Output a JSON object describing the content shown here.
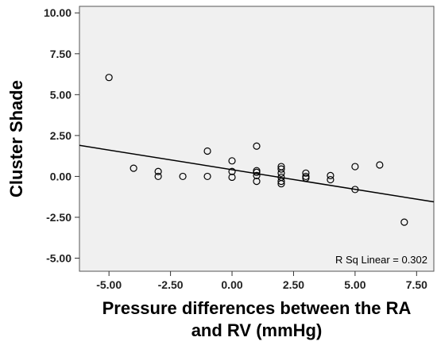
{
  "chart_data": {
    "type": "scatter",
    "title": "",
    "xlabel": "Pressure differences between the RA and RV (mmHg)",
    "xlabel_lines": [
      "Pressure differences between the RA",
      "and RV (mmHg)"
    ],
    "ylabel": "Cluster Shade",
    "xlim": [
      -6.2,
      8.2
    ],
    "ylim": [
      -5.8,
      10.4
    ],
    "x_ticks": [
      -5,
      -2.5,
      0,
      2.5,
      5,
      7.5
    ],
    "x_tick_labels": [
      "-5.00",
      "-2.50",
      "0.00",
      "2.50",
      "5.00",
      "7.50"
    ],
    "y_ticks": [
      -5,
      -2.5,
      0,
      2.5,
      5,
      7.5,
      10
    ],
    "y_tick_labels": [
      "-5.00",
      "-2.50",
      "0.00",
      "2.50",
      "5.00",
      "7.50",
      "10.00"
    ],
    "grid": false,
    "points": [
      {
        "x": -5,
        "y": 6.05
      },
      {
        "x": -4,
        "y": 0.5
      },
      {
        "x": -3,
        "y": 0.3
      },
      {
        "x": -3,
        "y": 0.0
      },
      {
        "x": -2,
        "y": 0.0
      },
      {
        "x": -1,
        "y": 1.55
      },
      {
        "x": -1,
        "y": 0.0
      },
      {
        "x": 0,
        "y": 0.95
      },
      {
        "x": 0,
        "y": 0.3
      },
      {
        "x": 0,
        "y": -0.05
      },
      {
        "x": 1,
        "y": 1.85
      },
      {
        "x": 1,
        "y": 0.35
      },
      {
        "x": 1,
        "y": 0.25
      },
      {
        "x": 1,
        "y": 0.05
      },
      {
        "x": 1,
        "y": -0.3
      },
      {
        "x": 2,
        "y": 0.6
      },
      {
        "x": 2,
        "y": 0.45
      },
      {
        "x": 2,
        "y": 0.2
      },
      {
        "x": 2,
        "y": -0.05
      },
      {
        "x": 2,
        "y": -0.3
      },
      {
        "x": 2,
        "y": -0.45
      },
      {
        "x": 3,
        "y": 0.2
      },
      {
        "x": 3,
        "y": 0.0
      },
      {
        "x": 3,
        "y": -0.1
      },
      {
        "x": 4,
        "y": 0.05
      },
      {
        "x": 4,
        "y": -0.2
      },
      {
        "x": 5,
        "y": 0.6
      },
      {
        "x": 5,
        "y": -0.8
      },
      {
        "x": 6,
        "y": 0.7
      },
      {
        "x": 7,
        "y": -2.8
      }
    ],
    "fit_line": {
      "intercept": 0.41,
      "slope": -0.24
    },
    "annotation": "R Sq Linear = 0.302",
    "annotation_placement": "bottom-right",
    "colors": {
      "plot_background": "#f0f0f0",
      "marker": "#000000",
      "line": "#000000"
    }
  }
}
